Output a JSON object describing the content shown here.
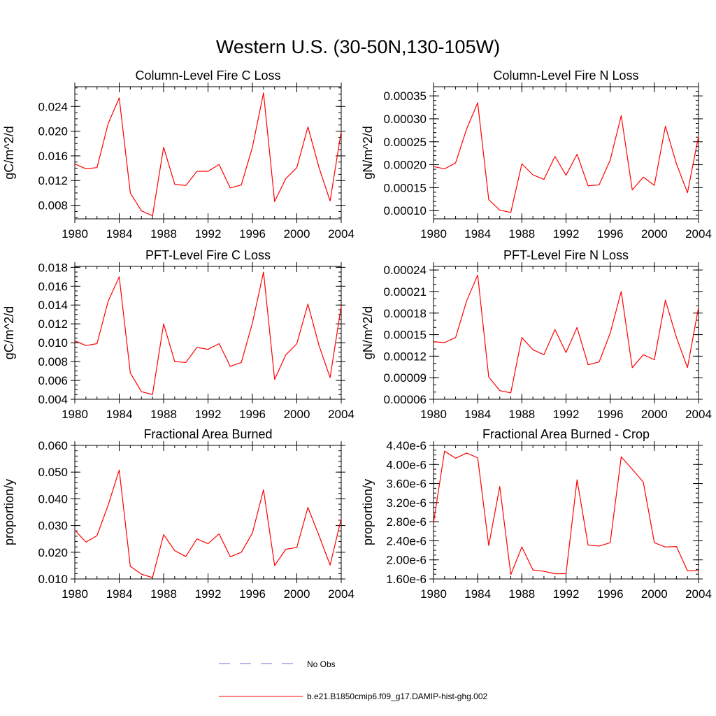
{
  "figure": {
    "title": "Western U.S. (30-50N,130-105W)"
  },
  "legend": {
    "items": [
      {
        "label": "No Obs",
        "color": "#7070c0",
        "style": "dashed"
      },
      {
        "label": "b.e21.B1850cmip6.f09_g17.DAMIP-hist-ghg.002",
        "color": "#ff0000",
        "style": "solid"
      }
    ]
  },
  "chart_data": [
    {
      "type": "line",
      "title": "Column-Level Fire C Loss",
      "ylabel": "gC/m^2/d",
      "xlim": [
        1980,
        2004
      ],
      "ylim": [
        0.0058,
        0.0272
      ],
      "xticks": [
        1980,
        1984,
        1988,
        1992,
        1996,
        2000,
        2004
      ],
      "xtick_labels": [
        "1980",
        "1984",
        "1988",
        "1992",
        "1996",
        "2000",
        "2004"
      ],
      "yticks": [
        0.008,
        0.012,
        0.016,
        0.02,
        0.024
      ],
      "ytick_labels": [
        "0.008",
        "0.012",
        "0.016",
        "0.020",
        "0.024"
      ],
      "yminor": 0.001,
      "x": [
        1980,
        1981,
        1982,
        1983,
        1984,
        1985,
        1986,
        1987,
        1988,
        1989,
        1990,
        1991,
        1992,
        1993,
        1994,
        1995,
        1996,
        1997,
        1998,
        1999,
        2000,
        2001,
        2002,
        2003,
        2004
      ],
      "series": [
        {
          "color": "#ff0000",
          "values": [
            0.0147,
            0.0139,
            0.0141,
            0.0212,
            0.0254,
            0.01,
            0.0071,
            0.0063,
            0.0174,
            0.0114,
            0.0112,
            0.0135,
            0.0135,
            0.0146,
            0.0108,
            0.0113,
            0.0174,
            0.0262,
            0.0086,
            0.0123,
            0.0141,
            0.0207,
            0.0141,
            0.0087,
            0.02
          ]
        }
      ]
    },
    {
      "type": "line",
      "title": "Column-Level Fire N Loss",
      "ylabel": "gN/m^2/d",
      "xlim": [
        1980,
        2004
      ],
      "ylim": [
        8.2e-05,
        0.00037
      ],
      "xticks": [
        1980,
        1984,
        1988,
        1992,
        1996,
        2000,
        2004
      ],
      "xtick_labels": [
        "1980",
        "1984",
        "1988",
        "1992",
        "1996",
        "2000",
        "2004"
      ],
      "yticks": [
        0.0001,
        0.00015,
        0.0002,
        0.00025,
        0.0003,
        0.00035
      ],
      "ytick_labels": [
        "0.00010",
        "0.00015",
        "0.00020",
        "0.00025",
        "0.00030",
        "0.00035"
      ],
      "yminor": 1e-05,
      "x": [
        1980,
        1981,
        1982,
        1983,
        1984,
        1985,
        1986,
        1987,
        1988,
        1989,
        1990,
        1991,
        1992,
        1993,
        1994,
        1995,
        1996,
        1997,
        1998,
        1999,
        2000,
        2001,
        2002,
        2003,
        2004
      ],
      "series": [
        {
          "color": "#ff0000",
          "values": [
            0.000196,
            0.000191,
            0.000204,
            0.000278,
            0.000335,
            0.000124,
            0.000101,
            9.6e-05,
            0.000202,
            0.000178,
            0.000168,
            0.000218,
            0.000177,
            0.000223,
            0.000154,
            0.000156,
            0.00021,
            0.000307,
            0.000145,
            0.000173,
            0.000155,
            0.000284,
            0.000202,
            0.000139,
            0.000262
          ]
        }
      ]
    },
    {
      "type": "line",
      "title": "PFT-Level Fire C Loss",
      "ylabel": "gC/m^2/d",
      "xlim": [
        1980,
        2004
      ],
      "ylim": [
        0.004,
        0.0181
      ],
      "xticks": [
        1980,
        1984,
        1988,
        1992,
        1996,
        2000,
        2004
      ],
      "xtick_labels": [
        "1980",
        "1984",
        "1988",
        "1992",
        "1996",
        "2000",
        "2004"
      ],
      "yticks": [
        0.004,
        0.006,
        0.008,
        0.01,
        0.012,
        0.014,
        0.016,
        0.018
      ],
      "ytick_labels": [
        "0.004",
        "0.006",
        "0.008",
        "0.010",
        "0.012",
        "0.014",
        "0.016",
        "0.018"
      ],
      "yminor": 0.0005,
      "x": [
        1980,
        1981,
        1982,
        1983,
        1984,
        1985,
        1986,
        1987,
        1988,
        1989,
        1990,
        1991,
        1992,
        1993,
        1994,
        1995,
        1996,
        1997,
        1998,
        1999,
        2000,
        2001,
        2002,
        2003,
        2004
      ],
      "series": [
        {
          "color": "#ff0000",
          "values": [
            0.0102,
            0.0097,
            0.0099,
            0.0144,
            0.017,
            0.0068,
            0.0048,
            0.0045,
            0.012,
            0.008,
            0.0079,
            0.0095,
            0.0093,
            0.0099,
            0.0075,
            0.0079,
            0.0121,
            0.0175,
            0.0061,
            0.0087,
            0.0099,
            0.0141,
            0.0097,
            0.0063,
            0.0139
          ]
        }
      ]
    },
    {
      "type": "line",
      "title": "PFT-Level Fire N Loss",
      "ylabel": "gN/m^2/d",
      "xlim": [
        1980,
        2004
      ],
      "ylim": [
        6e-05,
        0.000245
      ],
      "xticks": [
        1980,
        1984,
        1988,
        1992,
        1996,
        2000,
        2004
      ],
      "xtick_labels": [
        "1980",
        "1984",
        "1988",
        "1992",
        "1996",
        "2000",
        "2004"
      ],
      "yticks": [
        6e-05,
        9e-05,
        0.00012,
        0.00015,
        0.00018,
        0.00021,
        0.00024
      ],
      "ytick_labels": [
        "0.00006",
        "0.00009",
        "0.00012",
        "0.00015",
        "0.00018",
        "0.00021",
        "0.00024"
      ],
      "yminor": 1e-05,
      "x": [
        1980,
        1981,
        1982,
        1983,
        1984,
        1985,
        1986,
        1987,
        1988,
        1989,
        1990,
        1991,
        1992,
        1993,
        1994,
        1995,
        1996,
        1997,
        1998,
        1999,
        2000,
        2001,
        2002,
        2003,
        2004
      ],
      "series": [
        {
          "color": "#ff0000",
          "values": [
            0.00014,
            0.000139,
            0.000146,
            0.000197,
            0.000233,
            9.1e-05,
            7.2e-05,
            6.9e-05,
            0.000146,
            0.000129,
            0.000122,
            0.000157,
            0.000125,
            0.00016,
            0.000108,
            0.000112,
            0.000152,
            0.00021,
            0.000104,
            0.000122,
            0.000115,
            0.000198,
            0.000146,
            0.000104,
            0.000188
          ]
        }
      ]
    },
    {
      "type": "line",
      "title": "Fractional Area Burned",
      "ylabel": "proportion/y",
      "xlim": [
        1980,
        2004
      ],
      "ylim": [
        0.01,
        0.06
      ],
      "xticks": [
        1980,
        1984,
        1988,
        1992,
        1996,
        2000,
        2004
      ],
      "xtick_labels": [
        "1980",
        "1984",
        "1988",
        "1992",
        "1996",
        "2000",
        "2004"
      ],
      "yticks": [
        0.01,
        0.02,
        0.03,
        0.04,
        0.05,
        0.06
      ],
      "ytick_labels": [
        "0.010",
        "0.020",
        "0.030",
        "0.040",
        "0.050",
        "0.060"
      ],
      "yminor": 0.002,
      "x": [
        1980,
        1981,
        1982,
        1983,
        1984,
        1985,
        1986,
        1987,
        1988,
        1989,
        1990,
        1991,
        1992,
        1993,
        1994,
        1995,
        1996,
        1997,
        1998,
        1999,
        2000,
        2001,
        2002,
        2003,
        2004
      ],
      "series": [
        {
          "color": "#ff0000",
          "values": [
            0.0283,
            0.0238,
            0.0262,
            0.0376,
            0.0508,
            0.0147,
            0.0118,
            0.0105,
            0.0266,
            0.0206,
            0.0184,
            0.025,
            0.0232,
            0.0269,
            0.0183,
            0.02,
            0.0272,
            0.0434,
            0.015,
            0.0211,
            0.0218,
            0.0368,
            0.0262,
            0.0152,
            0.0326
          ]
        }
      ]
    },
    {
      "type": "line",
      "title": "Fractional Area Burned - Crop",
      "ylabel": "proportion/y",
      "xlim": [
        1980,
        2004
      ],
      "ylim": [
        1.6e-06,
        4.4e-06
      ],
      "xticks": [
        1980,
        1984,
        1988,
        1992,
        1996,
        2000,
        2004
      ],
      "xtick_labels": [
        "1980",
        "1984",
        "1988",
        "1992",
        "1996",
        "2000",
        "2004"
      ],
      "yticks": [
        1.6e-06,
        2e-06,
        2.4e-06,
        2.8e-06,
        3.2e-06,
        3.6e-06,
        4e-06,
        4.4e-06
      ],
      "ytick_labels": [
        "1.60e-6",
        "2.00e-6",
        "2.40e-6",
        "2.80e-6",
        "3.20e-6",
        "3.60e-6",
        "4.00e-6",
        "4.40e-6"
      ],
      "yminor": 1e-07,
      "x": [
        1980,
        1981,
        1982,
        1983,
        1984,
        1985,
        1986,
        1987,
        1988,
        1989,
        1990,
        1991,
        1992,
        1993,
        1994,
        1995,
        1996,
        1997,
        1998,
        1999,
        2000,
        2001,
        2002,
        2003,
        2004
      ],
      "series": [
        {
          "color": "#ff0000",
          "values": [
            2.78e-06,
            4.28e-06,
            4.13e-06,
            4.24e-06,
            4.14e-06,
            2.3e-06,
            3.54e-06,
            1.69e-06,
            2.27e-06,
            1.79e-06,
            1.76e-06,
            1.71e-06,
            1.71e-06,
            3.68e-06,
            2.31e-06,
            2.29e-06,
            2.36e-06,
            4.16e-06,
            3.9e-06,
            3.63e-06,
            2.36e-06,
            2.27e-06,
            2.28e-06,
            1.77e-06,
            1.77e-06
          ]
        }
      ]
    }
  ]
}
